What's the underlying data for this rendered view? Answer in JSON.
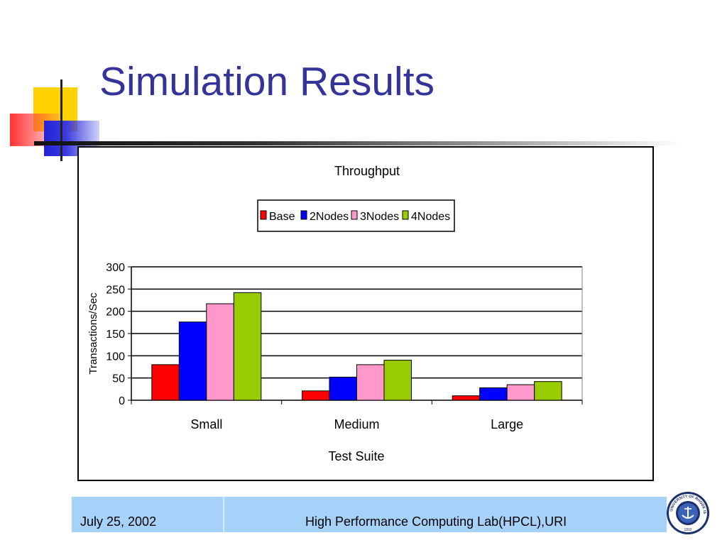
{
  "slide": {
    "title": "Simulation Results",
    "footer_date": "July 25, 2002",
    "footer_lab": "High Performance Computing Lab(HPCL),URI",
    "title_color": "#333399",
    "footer_color": "#a6d2fa",
    "seal_text": "UNIVERSITY OF RHODE ISLAND",
    "seal_year": "1892"
  },
  "chart_data": {
    "type": "bar",
    "title": "Throughput",
    "xlabel": "Test Suite",
    "ylabel": "Transactions/Sec",
    "categories": [
      "Small",
      "Medium",
      "Large"
    ],
    "ylim": [
      0,
      300
    ],
    "yticks": [
      0,
      50,
      100,
      150,
      200,
      250,
      300
    ],
    "grid": true,
    "legend_position": "top-center",
    "series": [
      {
        "name": "Base",
        "color": "#ff0000",
        "values": [
          80,
          21,
          10
        ]
      },
      {
        "name": "2Nodes",
        "color": "#0000ff",
        "values": [
          176,
          52,
          28
        ]
      },
      {
        "name": "3Nodes",
        "color": "#ff99cc",
        "values": [
          217,
          80,
          35
        ]
      },
      {
        "name": "4Nodes",
        "color": "#99cc00",
        "values": [
          242,
          90,
          42
        ]
      }
    ]
  }
}
